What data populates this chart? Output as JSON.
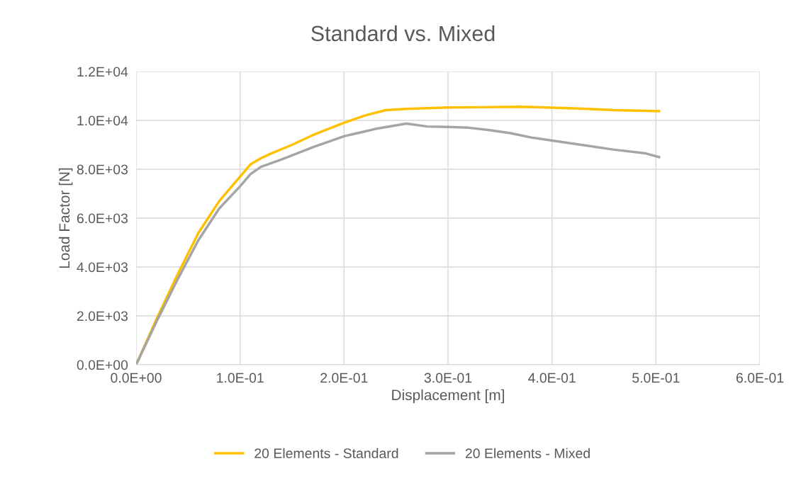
{
  "chart_data": {
    "type": "line",
    "title": "Standard vs. Mixed",
    "xlabel": "Displacement [m]",
    "ylabel": "Load Factor [N]",
    "xlim": [
      0,
      0.6
    ],
    "ylim": [
      0,
      12000
    ],
    "xticks": [
      {
        "value": 0,
        "label": "0.0E+00"
      },
      {
        "value": 0.1,
        "label": "1.0E-01"
      },
      {
        "value": 0.2,
        "label": "2.0E-01"
      },
      {
        "value": 0.3,
        "label": "3.0E-01"
      },
      {
        "value": 0.4,
        "label": "4.0E-01"
      },
      {
        "value": 0.5,
        "label": "5.0E-01"
      },
      {
        "value": 0.6,
        "label": "6.0E-01"
      }
    ],
    "yticks": [
      {
        "value": 0,
        "label": "0.0E+00"
      },
      {
        "value": 2000,
        "label": "2.0E+03"
      },
      {
        "value": 4000,
        "label": "4.0E+03"
      },
      {
        "value": 6000,
        "label": "6.0E+03"
      },
      {
        "value": 8000,
        "label": "8.0E+03"
      },
      {
        "value": 10000,
        "label": "1.0E+04"
      },
      {
        "value": 12000,
        "label": "1.2E+04"
      }
    ],
    "grid": true,
    "legend": "bottom",
    "marker": "none",
    "line_style": "solid",
    "series": [
      {
        "name": "20 Elements - Standard",
        "color": "#ffc000",
        "x": [
          0,
          0.02,
          0.04,
          0.06,
          0.08,
          0.1,
          0.11,
          0.12,
          0.13,
          0.15,
          0.17,
          0.2,
          0.22,
          0.24,
          0.26,
          0.3,
          0.33,
          0.37,
          0.4,
          0.43,
          0.46,
          0.503
        ],
        "values": [
          0,
          1900,
          3700,
          5400,
          6700,
          7700,
          8200,
          8450,
          8650,
          9000,
          9400,
          9900,
          10200,
          10420,
          10470,
          10530,
          10540,
          10560,
          10520,
          10480,
          10420,
          10380
        ]
      },
      {
        "name": "20 Elements - Mixed",
        "color": "#a5a5a5",
        "x": [
          0,
          0.02,
          0.04,
          0.06,
          0.08,
          0.1,
          0.11,
          0.12,
          0.14,
          0.17,
          0.2,
          0.23,
          0.26,
          0.28,
          0.3,
          0.32,
          0.34,
          0.36,
          0.38,
          0.42,
          0.46,
          0.49,
          0.503
        ],
        "values": [
          0,
          1800,
          3500,
          5100,
          6400,
          7300,
          7800,
          8100,
          8400,
          8900,
          9350,
          9650,
          9870,
          9750,
          9730,
          9700,
          9600,
          9480,
          9300,
          9050,
          8800,
          8650,
          8500
        ]
      }
    ]
  }
}
